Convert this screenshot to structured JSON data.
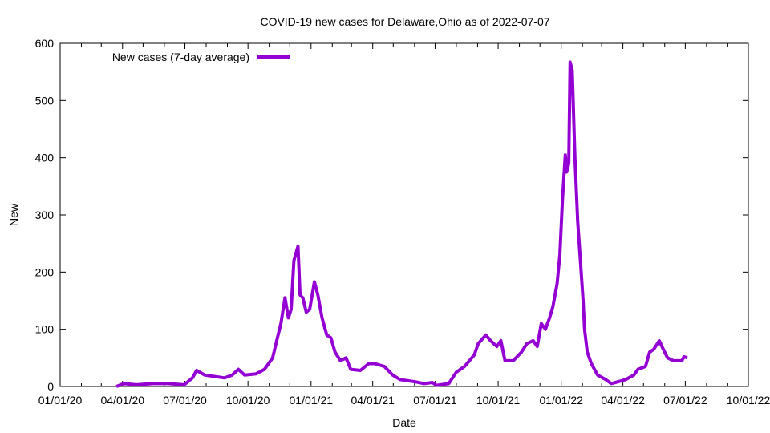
{
  "chart_data": {
    "type": "line",
    "title": "COVID-19 new cases for Delaware,Ohio as of 2022-07-07",
    "xlabel": "Date",
    "ylabel": "New",
    "xlim": [
      "2020-01-01",
      "2022-10-01"
    ],
    "ylim": [
      0,
      600
    ],
    "x_ticks": [
      "2020-01-01",
      "2020-04-01",
      "2020-07-01",
      "2020-10-01",
      "2021-01-01",
      "2021-04-01",
      "2021-07-01",
      "2021-10-01",
      "2022-01-01",
      "2022-04-01",
      "2022-07-01",
      "2022-10-01"
    ],
    "x_tick_labels": [
      "01/01/20",
      "04/01/20",
      "07/01/20",
      "10/01/20",
      "01/01/21",
      "04/01/21",
      "07/01/21",
      "10/01/21",
      "01/01/22",
      "04/01/22",
      "07/01/22",
      "10/01/22"
    ],
    "y_ticks": [
      0,
      100,
      200,
      300,
      400,
      500,
      600
    ],
    "y_tick_labels": [
      "0",
      "100",
      "200",
      "300",
      "400",
      "500",
      "600"
    ],
    "grid": false,
    "legend_position": "top-left",
    "series": [
      {
        "name": "New cases (7-day average)",
        "color": "#9400d3",
        "points": [
          [
            "2020-03-23",
            0
          ],
          [
            "2020-04-03",
            5
          ],
          [
            "2020-04-21",
            3
          ],
          [
            "2020-05-15",
            5
          ],
          [
            "2020-06-07",
            5
          ],
          [
            "2020-06-30",
            3
          ],
          [
            "2020-07-12",
            15
          ],
          [
            "2020-07-18",
            28
          ],
          [
            "2020-07-30",
            20
          ],
          [
            "2020-08-16",
            17
          ],
          [
            "2020-08-28",
            15
          ],
          [
            "2020-09-08",
            20
          ],
          [
            "2020-09-17",
            30
          ],
          [
            "2020-09-26",
            20
          ],
          [
            "2020-10-13",
            22
          ],
          [
            "2020-10-25",
            30
          ],
          [
            "2020-11-06",
            50
          ],
          [
            "2020-11-12",
            80
          ],
          [
            "2020-11-18",
            110
          ],
          [
            "2020-11-24",
            155
          ],
          [
            "2020-11-29",
            120
          ],
          [
            "2020-12-03",
            135
          ],
          [
            "2020-12-07",
            220
          ],
          [
            "2020-12-13",
            245
          ],
          [
            "2020-12-16",
            160
          ],
          [
            "2020-12-20",
            155
          ],
          [
            "2020-12-25",
            130
          ],
          [
            "2020-12-30",
            135
          ],
          [
            "2021-01-06",
            183
          ],
          [
            "2021-01-11",
            160
          ],
          [
            "2021-01-17",
            120
          ],
          [
            "2021-01-24",
            90
          ],
          [
            "2021-01-30",
            85
          ],
          [
            "2021-02-05",
            60
          ],
          [
            "2021-02-13",
            45
          ],
          [
            "2021-02-21",
            50
          ],
          [
            "2021-02-28",
            30
          ],
          [
            "2021-03-14",
            28
          ],
          [
            "2021-03-26",
            40
          ],
          [
            "2021-04-04",
            40
          ],
          [
            "2021-04-18",
            35
          ],
          [
            "2021-04-30",
            20
          ],
          [
            "2021-05-11",
            12
          ],
          [
            "2021-05-23",
            10
          ],
          [
            "2021-06-03",
            8
          ],
          [
            "2021-06-15",
            5
          ],
          [
            "2021-06-27",
            7
          ],
          [
            "2021-07-03",
            2
          ],
          [
            "2021-07-21",
            5
          ],
          [
            "2021-08-01",
            25
          ],
          [
            "2021-08-13",
            35
          ],
          [
            "2021-08-27",
            55
          ],
          [
            "2021-09-02",
            75
          ],
          [
            "2021-09-13",
            90
          ],
          [
            "2021-09-20",
            80
          ],
          [
            "2021-09-29",
            70
          ],
          [
            "2021-10-05",
            80
          ],
          [
            "2021-10-11",
            45
          ],
          [
            "2021-10-23",
            45
          ],
          [
            "2021-11-04",
            60
          ],
          [
            "2021-11-12",
            75
          ],
          [
            "2021-11-21",
            80
          ],
          [
            "2021-11-27",
            70
          ],
          [
            "2021-12-03",
            110
          ],
          [
            "2021-12-09",
            100
          ],
          [
            "2021-12-15",
            120
          ],
          [
            "2021-12-20",
            140
          ],
          [
            "2021-12-26",
            180
          ],
          [
            "2021-12-30",
            230
          ],
          [
            "2022-01-03",
            330
          ],
          [
            "2022-01-07",
            405
          ],
          [
            "2022-01-09",
            375
          ],
          [
            "2022-01-12",
            390
          ],
          [
            "2022-01-14",
            567
          ],
          [
            "2022-01-17",
            553
          ],
          [
            "2022-01-21",
            400
          ],
          [
            "2022-01-25",
            290
          ],
          [
            "2022-01-29",
            220
          ],
          [
            "2022-02-02",
            150
          ],
          [
            "2022-02-04",
            100
          ],
          [
            "2022-02-08",
            60
          ],
          [
            "2022-02-14",
            40
          ],
          [
            "2022-02-23",
            20
          ],
          [
            "2022-03-07",
            12
          ],
          [
            "2022-03-15",
            5
          ],
          [
            "2022-03-24",
            8
          ],
          [
            "2022-04-05",
            12
          ],
          [
            "2022-04-17",
            20
          ],
          [
            "2022-04-23",
            30
          ],
          [
            "2022-05-04",
            35
          ],
          [
            "2022-05-10",
            60
          ],
          [
            "2022-05-16",
            65
          ],
          [
            "2022-05-24",
            80
          ],
          [
            "2022-05-30",
            65
          ],
          [
            "2022-06-05",
            50
          ],
          [
            "2022-06-14",
            45
          ],
          [
            "2022-06-26",
            45
          ],
          [
            "2022-06-29",
            52
          ],
          [
            "2022-07-04",
            50
          ]
        ]
      }
    ]
  }
}
